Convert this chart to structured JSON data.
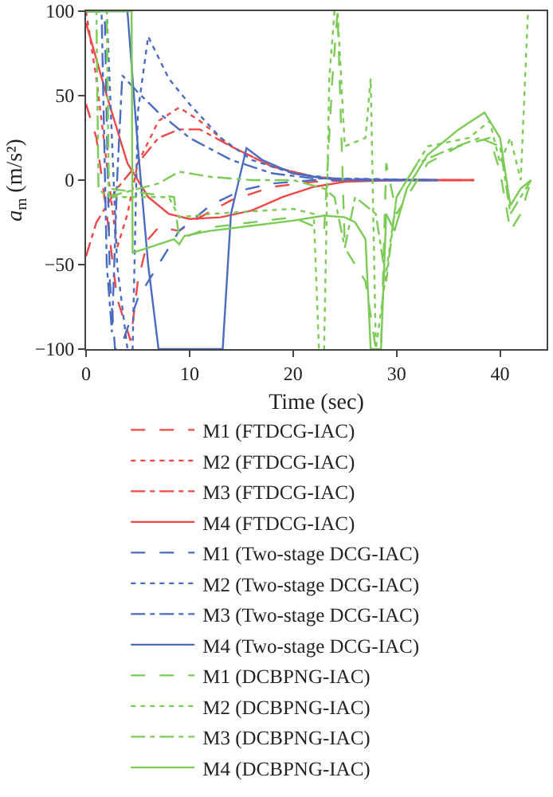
{
  "chart_data": {
    "type": "line",
    "xlabel": "Time (sec)",
    "ylabel": "a$_{m}$ (m/s²)",
    "xlim": [
      0,
      44.5
    ],
    "ylim": [
      -100,
      100
    ],
    "xticks": [
      0,
      10,
      20,
      30,
      40
    ],
    "yticks": [
      -100,
      -50,
      0,
      50,
      100
    ],
    "grid": false,
    "legend": "bottom",
    "marker": "none",
    "series": [
      {
        "name": "M1 (FTDCG-IAC)",
        "color": "#f04646",
        "line_style": "dashed",
        "x": [
          0,
          1,
          2,
          3,
          4.3,
          5,
          6,
          7,
          9,
          11,
          14,
          18,
          22,
          26,
          37.5
        ],
        "values": [
          45,
          25,
          -20,
          -70,
          -95,
          -60,
          -35,
          -28,
          -30,
          -22,
          -12,
          -4,
          -1,
          0,
          0
        ]
      },
      {
        "name": "M2 (FTDCG-IAC)",
        "color": "#f04646",
        "line_style": "dotted",
        "x": [
          0,
          1,
          2,
          3,
          4,
          5,
          7,
          9,
          11,
          14,
          18,
          22,
          26,
          37.5
        ],
        "values": [
          100,
          60,
          10,
          -40,
          -20,
          10,
          35,
          43,
          35,
          20,
          8,
          2,
          0,
          0
        ]
      },
      {
        "name": "M3 (FTDCG-IAC)",
        "color": "#f04646",
        "line_style": "dashdot",
        "x": [
          0,
          1,
          2,
          3,
          5,
          7,
          9,
          11,
          14,
          18,
          22,
          26,
          37.5
        ],
        "values": [
          -45,
          -25,
          -15,
          -5,
          10,
          25,
          30,
          30,
          20,
          8,
          2,
          0,
          0
        ]
      },
      {
        "name": "M4 (FTDCG-IAC)",
        "color": "#f04646",
        "line_style": "solid",
        "x": [
          0,
          2,
          4,
          6,
          8,
          10,
          13,
          16,
          19,
          22,
          25,
          30,
          37.5
        ],
        "values": [
          93,
          50,
          10,
          -10,
          -20,
          -23,
          -22,
          -18,
          -10,
          -4,
          -1,
          0,
          0
        ]
      },
      {
        "name": "M1 (Two-stage DCG-IAC)",
        "color": "#4a6cc0",
        "line_style": "dashed",
        "x": [
          0,
          1.8,
          2.3,
          2.8,
          3.3,
          5,
          7,
          9,
          12,
          15,
          18,
          22,
          34
        ],
        "values": [
          100,
          100,
          -60,
          -100,
          -100,
          -70,
          -50,
          -30,
          -15,
          -6,
          -2,
          0,
          0
        ]
      },
      {
        "name": "M2 (Two-stage DCG-IAC)",
        "color": "#4a6cc0",
        "line_style": "dotted",
        "x": [
          0,
          2,
          3,
          4,
          4.5,
          5,
          6,
          8,
          10,
          13,
          16,
          20,
          24,
          34
        ],
        "values": [
          100,
          100,
          -50,
          -100,
          -100,
          40,
          85,
          60,
          45,
          25,
          12,
          4,
          1,
          0
        ]
      },
      {
        "name": "M3 (Two-stage DCG-IAC)",
        "color": "#4a6cc0",
        "line_style": "dashdot",
        "x": [
          0,
          1.5,
          2,
          2.5,
          3,
          3.5,
          5,
          7,
          10,
          14,
          18,
          22,
          34
        ],
        "values": [
          100,
          100,
          -50,
          -90,
          0,
          62,
          52,
          40,
          25,
          12,
          4,
          1,
          0
        ]
      },
      {
        "name": "M4 (Two-stage DCG-IAC)",
        "color": "#4a6cc0",
        "line_style": "solid",
        "x": [
          0,
          4,
          5,
          6,
          7,
          13.2,
          14,
          15.5,
          17,
          20,
          23,
          26,
          34
        ],
        "values": [
          100,
          100,
          20,
          -50,
          -100,
          -100,
          -20,
          19,
          12,
          4,
          1,
          0,
          0
        ]
      },
      {
        "name": "M1 (DCBPNG-IAC)",
        "color": "#7ccb56",
        "line_style": "dashed",
        "x": [
          0,
          2,
          2.2,
          8.5,
          9,
          12,
          20,
          23,
          23.8,
          24.3,
          25,
          27,
          28,
          28.5,
          29,
          30,
          33,
          36,
          39,
          40,
          41,
          42,
          43
        ],
        "values": [
          100,
          100,
          -5,
          -10,
          -35,
          -28,
          -22,
          -30,
          60,
          100,
          -40,
          -60,
          -100,
          -100,
          10,
          -20,
          10,
          20,
          25,
          5,
          -30,
          -20,
          0
        ]
      },
      {
        "name": "M2 (DCBPNG-IAC)",
        "color": "#7ccb56",
        "line_style": "dotted",
        "x": [
          0,
          2,
          2.2,
          8,
          9,
          12,
          20,
          22,
          22.5,
          23,
          23.5,
          24,
          24.3,
          25,
          27,
          27.5,
          28,
          30,
          33,
          37,
          39,
          40,
          41,
          42,
          42.7
        ],
        "values": [
          100,
          100,
          -10,
          -10,
          -22,
          -20,
          -17,
          -20,
          -100,
          -100,
          60,
          100,
          100,
          20,
          25,
          60,
          -100,
          -10,
          20,
          25,
          35,
          10,
          25,
          0,
          100
        ]
      },
      {
        "name": "M3 (DCBPNG-IAC)",
        "color": "#7ccb56",
        "line_style": "dashdot",
        "x": [
          0,
          1,
          1.2,
          2,
          7,
          9,
          12,
          16,
          20,
          23,
          24,
          25,
          26,
          28,
          29,
          30,
          32,
          35,
          38,
          40,
          41,
          42,
          43
        ],
        "values": [
          100,
          100,
          -5,
          -10,
          -2,
          5,
          2,
          0,
          0,
          -5,
          -10,
          -40,
          -10,
          -20,
          -60,
          -10,
          10,
          18,
          25,
          20,
          -20,
          -10,
          0
        ]
      },
      {
        "name": "M4 (DCBPNG-IAC)",
        "color": "#7ccb56",
        "line_style": "solid",
        "x": [
          0,
          4.4,
          4.5,
          6,
          8.5,
          9,
          9.5,
          12,
          16,
          20,
          23,
          25,
          26,
          27,
          27.5,
          28.5,
          29,
          29.8,
          31,
          33,
          36,
          38.5,
          40,
          41,
          42,
          43
        ],
        "values": [
          100,
          100,
          -43,
          -40,
          -35,
          -38,
          -33,
          -30,
          -27,
          -24,
          -21,
          -22,
          -25,
          -35,
          -100,
          -100,
          -20,
          -30,
          -5,
          15,
          30,
          40,
          25,
          -15,
          -5,
          0
        ]
      }
    ]
  }
}
